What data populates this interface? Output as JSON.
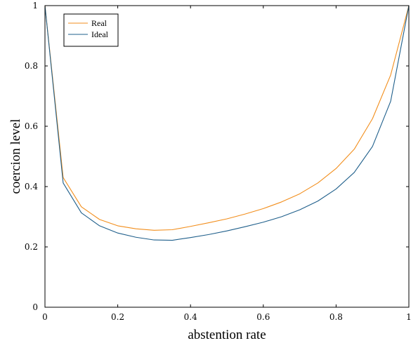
{
  "chart_data": {
    "type": "line",
    "xlabel": "abstention rate",
    "ylabel": "coercion level",
    "xlim": [
      0,
      1
    ],
    "ylim": [
      0,
      1
    ],
    "grid": false,
    "legend_position": "top-left",
    "x_ticks": [
      "0",
      "0.2",
      "0.4",
      "0.6",
      "0.8",
      "1"
    ],
    "y_ticks": [
      "0",
      "0.2",
      "0.4",
      "0.6",
      "0.8",
      "1"
    ],
    "x": [
      0,
      0.05,
      0.1,
      0.15,
      0.2,
      0.25,
      0.3,
      0.35,
      0.4,
      0.45,
      0.5,
      0.55,
      0.6,
      0.65,
      0.7,
      0.75,
      0.8,
      0.85,
      0.9,
      0.95,
      1
    ],
    "series": [
      {
        "name": "Real",
        "color": "#f28e1c",
        "values": [
          1.0,
          0.43,
          0.333,
          0.291,
          0.27,
          0.26,
          0.255,
          0.257,
          0.268,
          0.28,
          0.293,
          0.309,
          0.327,
          0.349,
          0.376,
          0.412,
          0.46,
          0.524,
          0.625,
          0.77,
          1.0
        ]
      },
      {
        "name": "Ideal",
        "color": "#1f5f8b",
        "values": [
          1.0,
          0.412,
          0.313,
          0.27,
          0.246,
          0.232,
          0.223,
          0.222,
          0.231,
          0.241,
          0.253,
          0.267,
          0.282,
          0.3,
          0.323,
          0.352,
          0.392,
          0.447,
          0.533,
          0.683,
          1.0
        ]
      }
    ]
  }
}
